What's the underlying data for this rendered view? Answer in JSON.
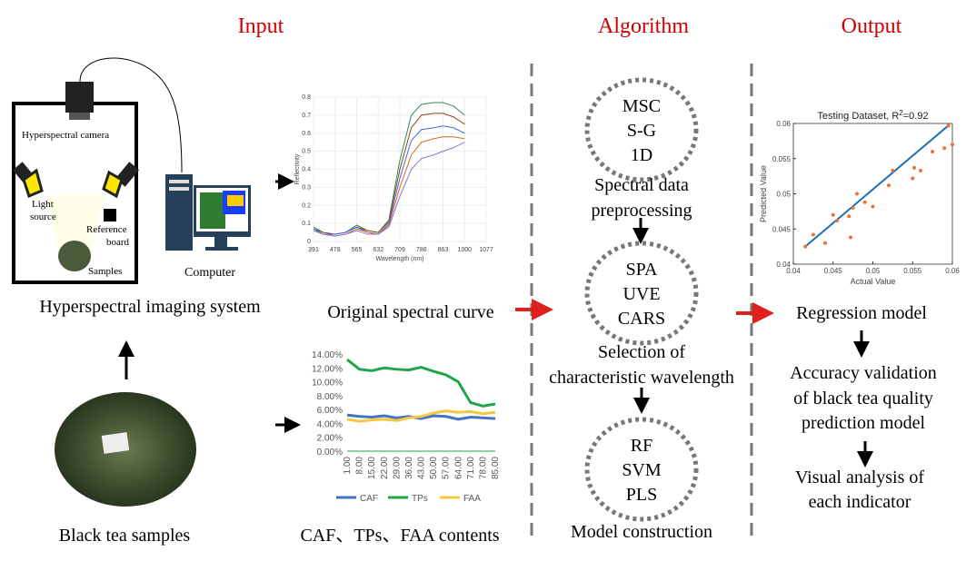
{
  "headers": {
    "input": "Input",
    "algorithm": "Algorithm",
    "output": "Output"
  },
  "imaging": {
    "camera": "Hyperspectral camera",
    "light": [
      "Light",
      "source"
    ],
    "reference": [
      "Reference",
      "board"
    ],
    "samples": "Samples",
    "computer": "Computer",
    "caption": "Hyperspectral imaging system"
  },
  "tea_caption": "Black tea samples",
  "spectral": {
    "type": "line",
    "ylabel": "Reflectivity",
    "xlabel": "Wavelength (nm)",
    "caption": "Original spectral curve",
    "xlim": [
      391,
      1077
    ],
    "xticks": [
      391,
      478,
      565,
      632,
      709,
      786,
      863,
      1000,
      1077
    ],
    "ylim": [
      0,
      0.8
    ],
    "yticks": [
      0,
      0.1,
      0.2,
      0.3,
      0.4,
      0.5,
      0.6,
      0.7,
      0.8
    ],
    "x": [
      391,
      430,
      478,
      520,
      565,
      600,
      632,
      670,
      709,
      750,
      786,
      830,
      863,
      930,
      1000
    ],
    "series": [
      {
        "color": "#2e8b57",
        "values": [
          0.08,
          0.05,
          0.04,
          0.05,
          0.09,
          0.06,
          0.05,
          0.12,
          0.45,
          0.7,
          0.76,
          0.77,
          0.77,
          0.75,
          0.7
        ]
      },
      {
        "color": "#8b4513",
        "values": [
          0.07,
          0.05,
          0.04,
          0.05,
          0.08,
          0.06,
          0.05,
          0.11,
          0.4,
          0.63,
          0.7,
          0.71,
          0.71,
          0.69,
          0.65
        ]
      },
      {
        "color": "#4169e1",
        "values": [
          0.07,
          0.04,
          0.04,
          0.05,
          0.08,
          0.05,
          0.04,
          0.1,
          0.35,
          0.56,
          0.62,
          0.63,
          0.64,
          0.63,
          0.6
        ]
      },
      {
        "color": "#d2691e",
        "values": [
          0.06,
          0.04,
          0.03,
          0.04,
          0.07,
          0.05,
          0.04,
          0.09,
          0.3,
          0.48,
          0.55,
          0.57,
          0.58,
          0.58,
          0.57
        ]
      },
      {
        "color": "#9370db",
        "values": [
          0.06,
          0.04,
          0.03,
          0.04,
          0.06,
          0.04,
          0.04,
          0.08,
          0.25,
          0.4,
          0.46,
          0.48,
          0.5,
          0.52,
          0.55
        ]
      }
    ]
  },
  "contents": {
    "type": "line",
    "caption": "CAF、TPs、FAA contents",
    "categories": [
      "1.00",
      "8.00",
      "15.00",
      "22.00",
      "29.00",
      "36.00",
      "43.00",
      "50.00",
      "57.00",
      "64.00",
      "71.00",
      "78.00",
      "85.00"
    ],
    "ylim": [
      0,
      14
    ],
    "yticks": [
      {
        "value": 0,
        "label": "0.00%"
      },
      {
        "value": 2,
        "label": "2.00%"
      },
      {
        "value": 4,
        "label": "4.00%"
      },
      {
        "value": 6,
        "label": "6.00%"
      },
      {
        "value": 8,
        "label": "8.00%"
      },
      {
        "value": 10,
        "label": "10.00%"
      },
      {
        "value": 12,
        "label": "12.00%"
      },
      {
        "value": 14,
        "label": "14.00%"
      }
    ],
    "series": [
      {
        "name": "CAF",
        "color": "#4472c4",
        "values": [
          5.2,
          5.0,
          4.9,
          5.1,
          4.8,
          5.0,
          4.7,
          5.1,
          5.0,
          4.6,
          4.9,
          4.8,
          4.7
        ]
      },
      {
        "name": "TPs",
        "color": "#1fa54a",
        "values": [
          13.2,
          11.8,
          11.6,
          12.0,
          11.8,
          11.7,
          12.1,
          11.5,
          11.0,
          10.0,
          7.0,
          6.5,
          6.8
        ]
      },
      {
        "name": "FAA",
        "color": "#f5c842",
        "values": [
          4.6,
          4.3,
          4.5,
          4.6,
          4.4,
          4.8,
          5.0,
          5.5,
          5.8,
          5.6,
          5.7,
          5.4,
          5.6
        ]
      }
    ]
  },
  "algorithm": [
    {
      "methods": [
        "MSC",
        "S-G",
        "1D"
      ],
      "caption": [
        "Spectral data",
        "preprocessing"
      ]
    },
    {
      "methods": [
        "SPA",
        "UVE",
        "CARS"
      ],
      "caption": [
        "Selection of",
        "characteristic wavelength"
      ]
    },
    {
      "methods": [
        "RF",
        "SVM",
        "PLS"
      ],
      "caption": [
        "Model construction"
      ]
    }
  ],
  "scatter": {
    "type": "scatter",
    "title": {
      "prefix": "Testing Dataset, R",
      "sup": "2",
      "suffix": "=0.92"
    },
    "xlabel": "Actual Value",
    "ylabel": "Predicted Value",
    "color": "#e8743b",
    "line_color": "#1f6fb5",
    "xlim": [
      0.04,
      0.06
    ],
    "xticks": [
      0.04,
      0.045,
      0.05,
      0.055,
      0.06
    ],
    "ylim": [
      0.04,
      0.06
    ],
    "yticks": [
      0.04,
      0.045,
      0.05,
      0.055,
      0.06
    ],
    "x": [
      0.0415,
      0.0425,
      0.044,
      0.045,
      0.0455,
      0.047,
      0.0472,
      0.0475,
      0.048,
      0.049,
      0.05,
      0.052,
      0.0525,
      0.055,
      0.0552,
      0.056,
      0.0575,
      0.059,
      0.0595,
      0.06
    ],
    "y": [
      0.0425,
      0.0442,
      0.043,
      0.047,
      0.0462,
      0.0468,
      0.0438,
      0.048,
      0.05,
      0.0488,
      0.0482,
      0.0512,
      0.0533,
      0.0522,
      0.0537,
      0.0533,
      0.056,
      0.0565,
      0.0597,
      0.057
    ],
    "fit": {
      "x": [
        0.0415,
        0.0595
      ],
      "y": [
        0.0425,
        0.0597
      ]
    }
  },
  "output": {
    "model": "Regression model",
    "validation": [
      "Accuracy validation",
      "of black tea quality",
      "prediction model"
    ],
    "visual": [
      "Visual analysis of",
      "each indicator"
    ]
  }
}
